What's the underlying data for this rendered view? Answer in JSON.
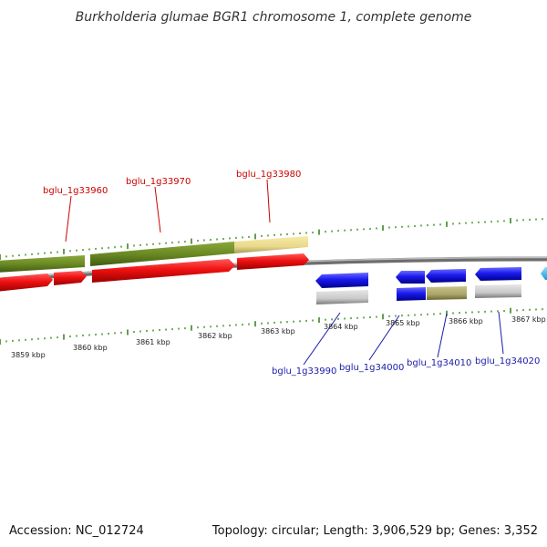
{
  "title": "Burkholderia glumae BGR1 chromosome 1, complete genome",
  "footer": {
    "accession": "Accession: NC_012724",
    "summary": "Topology: circular; Length: 3,906,529 bp; Genes: 3,352"
  },
  "colors": {
    "forward_label": "#cc0000",
    "reverse_label": "#1a1aaa",
    "tick": "#2e7d10",
    "backbone": "#808080"
  },
  "kbp_labels": [
    "3859 kbp",
    "3860 kbp",
    "3861 kbp",
    "3862 kbp",
    "3863 kbp",
    "3864 kbp",
    "3865 kbp",
    "3866 kbp",
    "3867 kbp"
  ],
  "gene_labels_top": [
    "bglu_1g33960",
    "bglu_1g33970",
    "bglu_1g33980"
  ],
  "gene_labels_bottom": [
    "bglu_1g33990",
    "bglu_1g34000",
    "bglu_1g34010",
    "bglu_1g34020"
  ]
}
